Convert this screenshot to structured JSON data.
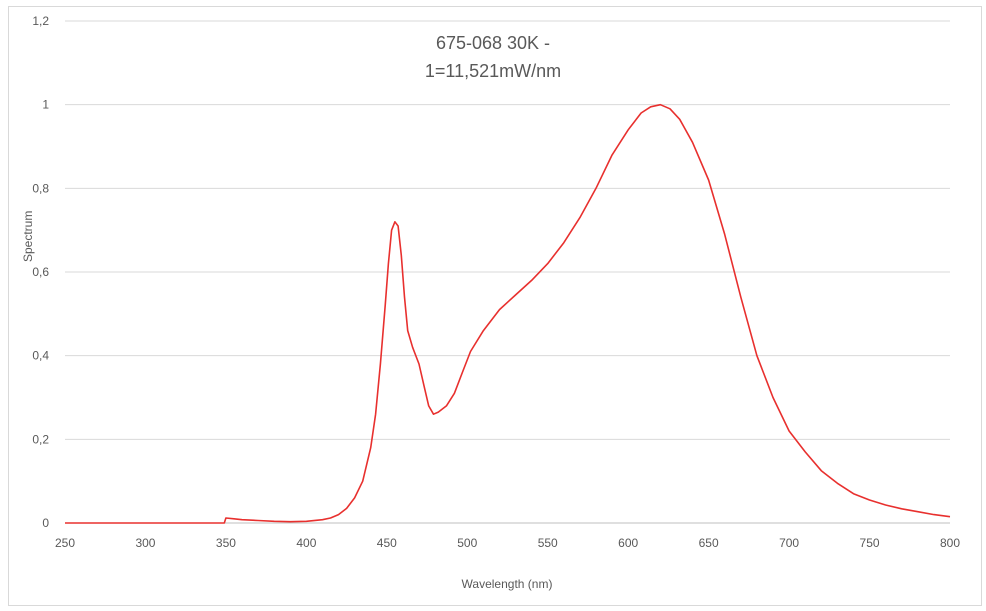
{
  "chart_data": {
    "type": "line",
    "title_lines": [
      "675-068 30K -",
      "1=11,521mW/nm"
    ],
    "xlabel": "Wavelength (nm)",
    "ylabel": "Spectrum",
    "xlim": [
      250,
      800
    ],
    "ylim": [
      0,
      1.2
    ],
    "xticks": [
      250,
      300,
      350,
      400,
      450,
      500,
      550,
      600,
      650,
      700,
      750,
      800
    ],
    "yticks": [
      0,
      0.2,
      0.4,
      0.6,
      0.8,
      1,
      1.2
    ],
    "ytick_labels": [
      "0",
      "0,2",
      "0,4",
      "0,6",
      "0,8",
      "1",
      "1,2"
    ],
    "grid": "horizontal",
    "legend": "none",
    "series": [
      {
        "color": "#e8302e",
        "points": [
          [
            250,
            0
          ],
          [
            300,
            0
          ],
          [
            349,
            0
          ],
          [
            350,
            0.012
          ],
          [
            355,
            0.01
          ],
          [
            360,
            0.008
          ],
          [
            370,
            0.006
          ],
          [
            380,
            0.004
          ],
          [
            390,
            0.003
          ],
          [
            400,
            0.004
          ],
          [
            410,
            0.008
          ],
          [
            415,
            0.012
          ],
          [
            420,
            0.02
          ],
          [
            425,
            0.035
          ],
          [
            430,
            0.06
          ],
          [
            435,
            0.1
          ],
          [
            440,
            0.18
          ],
          [
            443,
            0.26
          ],
          [
            446,
            0.38
          ],
          [
            449,
            0.52
          ],
          [
            451,
            0.62
          ],
          [
            453,
            0.7
          ],
          [
            455,
            0.72
          ],
          [
            457,
            0.71
          ],
          [
            459,
            0.64
          ],
          [
            461,
            0.54
          ],
          [
            463,
            0.46
          ],
          [
            466,
            0.42
          ],
          [
            470,
            0.38
          ],
          [
            473,
            0.33
          ],
          [
            476,
            0.28
          ],
          [
            479,
            0.26
          ],
          [
            482,
            0.265
          ],
          [
            487,
            0.28
          ],
          [
            492,
            0.31
          ],
          [
            497,
            0.36
          ],
          [
            502,
            0.41
          ],
          [
            510,
            0.46
          ],
          [
            520,
            0.51
          ],
          [
            530,
            0.545
          ],
          [
            540,
            0.58
          ],
          [
            550,
            0.62
          ],
          [
            560,
            0.67
          ],
          [
            570,
            0.73
          ],
          [
            580,
            0.8
          ],
          [
            590,
            0.88
          ],
          [
            600,
            0.94
          ],
          [
            608,
            0.98
          ],
          [
            614,
            0.995
          ],
          [
            620,
            1.0
          ],
          [
            626,
            0.99
          ],
          [
            632,
            0.965
          ],
          [
            640,
            0.91
          ],
          [
            650,
            0.82
          ],
          [
            660,
            0.69
          ],
          [
            670,
            0.54
          ],
          [
            680,
            0.4
          ],
          [
            690,
            0.3
          ],
          [
            700,
            0.22
          ],
          [
            710,
            0.17
          ],
          [
            720,
            0.125
          ],
          [
            730,
            0.095
          ],
          [
            740,
            0.07
          ],
          [
            750,
            0.055
          ],
          [
            760,
            0.043
          ],
          [
            770,
            0.034
          ],
          [
            780,
            0.027
          ],
          [
            790,
            0.02
          ],
          [
            800,
            0.015
          ]
        ]
      }
    ]
  }
}
